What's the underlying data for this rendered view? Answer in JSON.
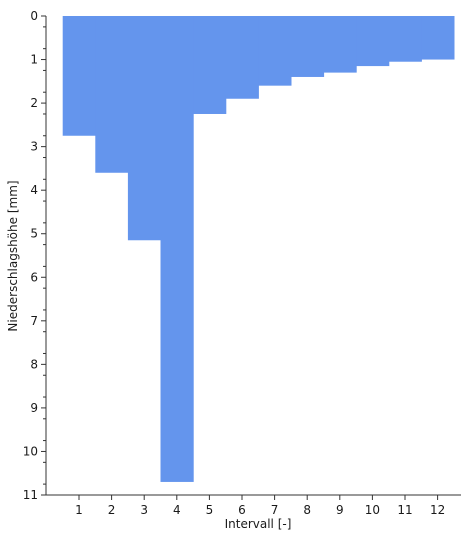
{
  "chart_data": {
    "type": "bar",
    "orientation": "inverted",
    "categories": [
      "1",
      "2",
      "3",
      "4",
      "5",
      "6",
      "7",
      "8",
      "9",
      "10",
      "11",
      "12"
    ],
    "values": [
      2.75,
      3.6,
      5.15,
      10.7,
      2.25,
      1.9,
      1.6,
      1.4,
      1.3,
      1.15,
      1.05,
      1.0
    ],
    "xlabel": "Intervall [-]",
    "ylabel": "Niederschlagshöhe [mm]",
    "ylim": [
      0,
      11
    ],
    "yticks": [
      "0",
      "1",
      "2",
      "3",
      "4",
      "5",
      "6",
      "7",
      "8",
      "9",
      "10",
      "11"
    ],
    "grid": false,
    "bar_color": "#6495ed"
  }
}
